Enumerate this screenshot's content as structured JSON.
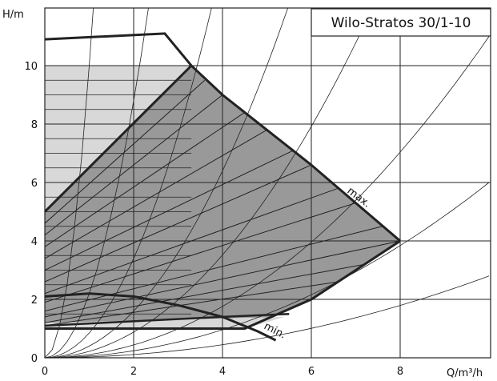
{
  "chart_data": {
    "type": "line",
    "title": "Wilo-Stratos 30/1-10",
    "xlabel": "Q/m³/h",
    "ylabel": "H/m",
    "xlim": [
      0,
      10
    ],
    "ylim": [
      0,
      12
    ],
    "x_ticks": [
      0,
      2,
      4,
      6,
      8
    ],
    "y_ticks": [
      0,
      2,
      4,
      6,
      8,
      10
    ],
    "grid": true,
    "colors": {
      "operating_area": "#999999",
      "light_area": "#d8d8d8",
      "grid": "#222222",
      "curve": "#222222"
    },
    "curve_labels": {
      "max": "max.",
      "min": "min."
    },
    "series": [
      {
        "name": "max.",
        "points": [
          [
            0,
            10.9
          ],
          [
            2.7,
            11.1
          ],
          [
            3.3,
            10.0
          ],
          [
            4.0,
            9.0
          ],
          [
            5.0,
            7.8
          ],
          [
            6.0,
            6.6
          ],
          [
            7.0,
            5.3
          ],
          [
            8.0,
            4.0
          ]
        ]
      },
      {
        "name": "min.",
        "points": [
          [
            0,
            2.1
          ],
          [
            1.0,
            2.2
          ],
          [
            2.0,
            2.1
          ],
          [
            3.0,
            1.8
          ],
          [
            4.0,
            1.4
          ],
          [
            4.8,
            0.9
          ],
          [
            5.2,
            0.6
          ]
        ]
      }
    ],
    "operating_area": [
      [
        0,
        5.0
      ],
      [
        3.3,
        10.0
      ],
      [
        4.0,
        9.0
      ],
      [
        5.0,
        7.8
      ],
      [
        6.0,
        6.6
      ],
      [
        7.0,
        5.3
      ],
      [
        8.0,
        4.0
      ],
      [
        6.0,
        2.0
      ],
      [
        4.5,
        1.0
      ],
      [
        0,
        1.0
      ]
    ],
    "light_area": [
      [
        0,
        10.0
      ],
      [
        3.3,
        10.0
      ],
      [
        0,
        5.0
      ]
    ],
    "lower_light_area": [
      [
        0,
        1.0
      ],
      [
        4.5,
        1.0
      ],
      [
        5.4,
        1.4
      ],
      [
        0,
        1.2
      ]
    ],
    "upper_boundary": [
      [
        0,
        1.0
      ],
      [
        4.5,
        1.0
      ],
      [
        6.0,
        2.0
      ],
      [
        8.0,
        4.0
      ]
    ],
    "lower_rail": [
      [
        0,
        1.1
      ],
      [
        4.0,
        1.4
      ],
      [
        5.5,
        1.5
      ]
    ],
    "speed_lines": [
      {
        "from": [
          0,
          5.0
        ],
        "to": [
          3.3,
          10.0
        ]
      },
      {
        "from": [
          0,
          4.6
        ],
        "to": [
          3.6,
          9.5
        ]
      },
      {
        "from": [
          0,
          4.2
        ],
        "to": [
          4.0,
          9.0
        ]
      },
      {
        "from": [
          0,
          3.8
        ],
        "to": [
          4.5,
          8.4
        ]
      },
      {
        "from": [
          0,
          3.4
        ],
        "to": [
          5.0,
          7.8
        ]
      },
      {
        "from": [
          0,
          3.0
        ],
        "to": [
          5.6,
          7.1
        ]
      },
      {
        "from": [
          0,
          2.6
        ],
        "to": [
          6.0,
          6.6
        ]
      },
      {
        "from": [
          0,
          2.2
        ],
        "to": [
          6.6,
          5.8
        ]
      },
      {
        "from": [
          0,
          1.9
        ],
        "to": [
          7.0,
          5.3
        ]
      },
      {
        "from": [
          0,
          1.6
        ],
        "to": [
          7.6,
          4.5
        ]
      },
      {
        "from": [
          0,
          1.4
        ],
        "to": [
          8.0,
          4.0
        ]
      },
      {
        "from": [
          0,
          1.2
        ],
        "to": [
          7.2,
          3.2
        ]
      },
      {
        "from": [
          0,
          1.1
        ],
        "to": [
          6.6,
          2.6
        ]
      }
    ],
    "system_curves": [
      {
        "coef": 10.0
      },
      {
        "coef": 2.2
      },
      {
        "coef": 0.85
      },
      {
        "coef": 0.4
      },
      {
        "coef": 0.22
      },
      {
        "coef": 0.11
      },
      {
        "coef": 0.06
      },
      {
        "coef": 0.028
      }
    ],
    "horizontal_rules": [
      1.0,
      1.5,
      2.0,
      2.5,
      3.0,
      3.5,
      4.0,
      4.5,
      5.0,
      5.5,
      6.0,
      6.5,
      7.0,
      7.5,
      8.0,
      8.5,
      9.0,
      9.5,
      10.0
    ]
  }
}
